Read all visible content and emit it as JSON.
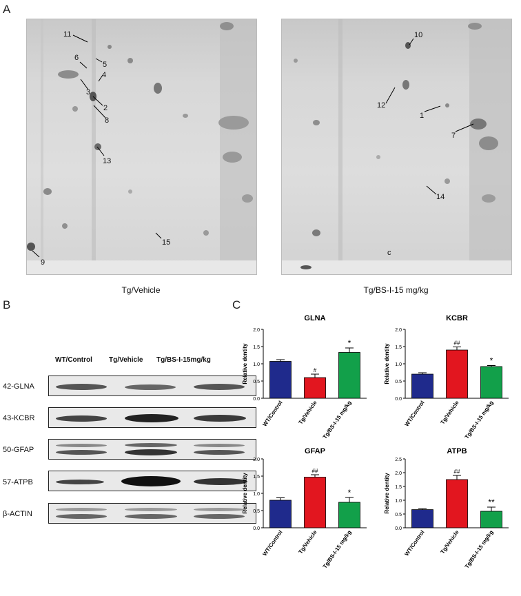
{
  "panels": {
    "a": "A",
    "b": "B",
    "c": "C"
  },
  "gel_left": {
    "caption": "Tg/Vehicle",
    "spots": [
      {
        "label": "11"
      },
      {
        "label": "6"
      },
      {
        "label": "5"
      },
      {
        "label": "4"
      },
      {
        "label": "3"
      },
      {
        "label": "2"
      },
      {
        "label": "8"
      },
      {
        "label": "13"
      },
      {
        "label": "15"
      },
      {
        "label": "9"
      }
    ]
  },
  "gel_right": {
    "caption": "Tg/BS-I-15 mg/kg",
    "spots": [
      {
        "label": "10"
      },
      {
        "label": "12"
      },
      {
        "label": "1"
      },
      {
        "label": "7"
      },
      {
        "label": "14"
      }
    ],
    "mark": "c"
  },
  "western": {
    "lanes": [
      "WT/Control",
      "Tg/Vehicle",
      "Tg/BS-I-15mg/kg"
    ],
    "rows": [
      "42-GLNA",
      "43-KCBR",
      "50-GFAP",
      "57-ATPB",
      "β-ACTIN"
    ]
  },
  "colors": {
    "wt": "#1f2a8c",
    "vehicle": "#e2161f",
    "bsi": "#12a04a"
  },
  "chart_data": [
    {
      "type": "bar",
      "title": "GLNA",
      "ylabel": "Relative dentity",
      "categories": [
        "WT/Control",
        "Tg/Vehicle",
        "Tg/BS-I-15 mg/kg"
      ],
      "values": [
        1.07,
        0.6,
        1.33
      ],
      "errors": [
        0.05,
        0.1,
        0.13
      ],
      "annotations": [
        "",
        "#",
        "*"
      ],
      "ylim": [
        0,
        2.0
      ],
      "yticks": [
        "0.0",
        "0.5",
        "1.0",
        "1.5",
        "2.0"
      ]
    },
    {
      "type": "bar",
      "title": "KCBR",
      "ylabel": "Relative dentity",
      "categories": [
        "WT/Control",
        "Tg/Vehicle",
        "Tg/BS-I-15 mg/kg"
      ],
      "values": [
        0.7,
        1.4,
        0.92
      ],
      "errors": [
        0.04,
        0.09,
        0.03
      ],
      "annotations": [
        "",
        "##",
        "*"
      ],
      "ylim": [
        0,
        2.0
      ],
      "yticks": [
        "0.0",
        "0.5",
        "1.0",
        "1.5",
        "2.0"
      ]
    },
    {
      "type": "bar",
      "title": "GFAP",
      "ylabel": "Relative dentity",
      "categories": [
        "WT/Control",
        "Tg/Vehicle",
        "Tg/BS-I-15 mg/kg"
      ],
      "values": [
        0.8,
        1.47,
        0.74
      ],
      "errors": [
        0.07,
        0.07,
        0.14
      ],
      "annotations": [
        "",
        "##",
        "*"
      ],
      "ylim": [
        0,
        2.0
      ],
      "yticks": [
        "0.0",
        "0.5",
        "1.0",
        "1.5",
        "2.0"
      ]
    },
    {
      "type": "bar",
      "title": "ATPB",
      "ylabel": "Relative dentity",
      "categories": [
        "WT/Control",
        "Tg/Vehicle",
        "Tg/BS-I-15 mg/kg"
      ],
      "values": [
        0.66,
        1.75,
        0.6
      ],
      "errors": [
        0.03,
        0.15,
        0.15
      ],
      "annotations": [
        "",
        "##",
        "**"
      ],
      "ylim": [
        0,
        2.5
      ],
      "yticks": [
        "0.0",
        "0.5",
        "1.0",
        "1.5",
        "2.0",
        "2.5"
      ]
    }
  ]
}
